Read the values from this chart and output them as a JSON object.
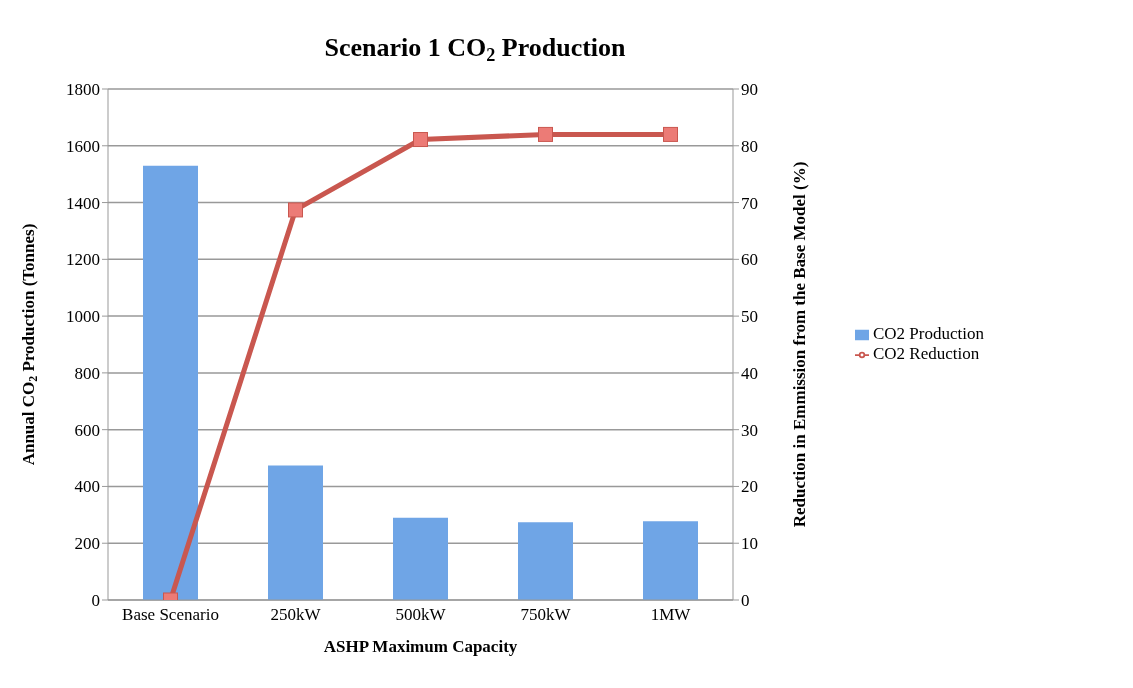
{
  "chart_data": {
    "type": "bar",
    "title": "Scenario 1 CO$_{2}$ Production",
    "xlabel": "ASHP Maximum Capacity",
    "ylabel": "Annual CO$_{2}$ Production (Tonnes)",
    "y2label": "Reduction in Emmission from the Base Model (%)",
    "categories": [
      "Base Scenario",
      "250kW",
      "500kW",
      "750kW",
      "1MW"
    ],
    "series": [
      {
        "name": "CO2 Production",
        "color": "#6fa5e6",
        "values": [
          1530,
          474,
          290,
          274,
          277
        ]
      },
      {
        "name": "CO2 Reduction",
        "type": "line",
        "axis": "y2",
        "color": "#c9574f",
        "values": [
          0,
          68.7,
          81.1,
          82,
          82
        ]
      }
    ],
    "ylim": [
      0,
      1800
    ],
    "yticks": [
      0,
      200,
      400,
      600,
      800,
      1000,
      1200,
      1400,
      1600,
      1800
    ],
    "y2lim": [
      0,
      90
    ],
    "y2ticks": [
      0,
      10,
      20,
      30,
      40,
      50,
      60,
      70,
      80,
      90
    ],
    "grid": "y",
    "legend": "right",
    "marker": "square",
    "line_style": "solid"
  }
}
